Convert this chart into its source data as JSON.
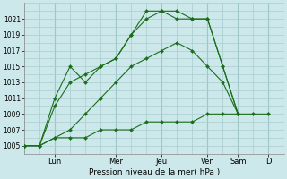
{
  "xlabel": "Pression niveau de la mer( hPa )",
  "bg_color": "#cce8ea",
  "grid_color": "#aacdd0",
  "line_color": "#1a6e1a",
  "ylim": [
    1004,
    1023
  ],
  "yticks": [
    1005,
    1007,
    1009,
    1011,
    1013,
    1015,
    1017,
    1019,
    1021
  ],
  "day_labels": [
    "Lun",
    "Mer",
    "Jeu",
    "Ven",
    "Sam",
    "D"
  ],
  "day_positions": [
    2,
    6,
    9,
    12,
    14,
    16
  ],
  "xlim": [
    0,
    17
  ],
  "series": [
    {
      "x": [
        0,
        1,
        2,
        3,
        4,
        5,
        6,
        7,
        8,
        9,
        10,
        11,
        12,
        13,
        14
      ],
      "y": [
        1005,
        1005,
        1011,
        1015,
        1013,
        1015,
        1016,
        1019,
        1022,
        1022,
        1022,
        1021,
        1021,
        1015,
        1009
      ]
    },
    {
      "x": [
        0,
        1,
        2,
        3,
        4,
        5,
        6,
        7,
        8,
        9,
        10,
        11,
        12,
        13,
        14
      ],
      "y": [
        1005,
        1005,
        1010,
        1013,
        1014,
        1015,
        1016,
        1019,
        1021,
        1022,
        1021,
        1021,
        1021,
        1015,
        1009
      ]
    },
    {
      "x": [
        0,
        1,
        2,
        3,
        4,
        5,
        6,
        7,
        8,
        9,
        10,
        11,
        12,
        13,
        14
      ],
      "y": [
        1005,
        1005,
        1006,
        1007,
        1009,
        1011,
        1013,
        1015,
        1016,
        1017,
        1018,
        1017,
        1015,
        1013,
        1009
      ]
    },
    {
      "x": [
        0,
        1,
        2,
        3,
        4,
        5,
        6,
        7,
        8,
        9,
        10,
        11,
        12,
        13,
        14,
        15,
        16
      ],
      "y": [
        1005,
        1005,
        1006,
        1006,
        1006,
        1007,
        1007,
        1007,
        1008,
        1008,
        1008,
        1008,
        1009,
        1009,
        1009,
        1009,
        1009
      ]
    }
  ],
  "vline_x": [
    2,
    6,
    9,
    12,
    14,
    16
  ]
}
